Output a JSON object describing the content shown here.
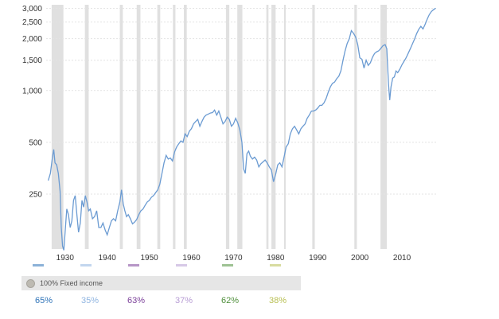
{
  "chart_data": {
    "type": "line",
    "title": "",
    "xlabel": "",
    "ylabel": "",
    "x_ticks": [
      "1930",
      "1940",
      "1950",
      "1960",
      "1970",
      "1980",
      "1990",
      "2000",
      "2010"
    ],
    "y_ticks": [
      "250",
      "500",
      "1,000",
      "1,500",
      "2,000",
      "2,500",
      "3,000"
    ],
    "y_scale": "log",
    "xlim": [
      1925.5,
      2018.5
    ],
    "ylim": [
      120,
      3150
    ],
    "grid": "horizontal dashed",
    "line_color": "#6b9bd2",
    "recession_color": "#e0e0e0",
    "recessions": [
      [
        1926.8,
        1929.6
      ],
      [
        1934.7,
        1935.6
      ],
      [
        1943.0,
        1943.7
      ],
      [
        1947.0,
        1947.9
      ],
      [
        1951.9,
        1952.6
      ],
      [
        1955.6,
        1956.2
      ],
      [
        1958.2,
        1958.9
      ],
      [
        1968.2,
        1969.0
      ],
      [
        1970.9,
        1972.1
      ],
      [
        1977.8,
        1978.3
      ],
      [
        1979.0,
        1980.0
      ],
      [
        1982.0,
        1982.4
      ],
      [
        1988.7,
        1989.3
      ],
      [
        1998.7,
        1999.3
      ],
      [
        2004.9,
        2006.4
      ]
    ],
    "series": [
      {
        "points": [
          [
            1926.0,
            300
          ],
          [
            1926.5,
            330
          ],
          [
            1927.0,
            410
          ],
          [
            1927.3,
            455
          ],
          [
            1927.6,
            380
          ],
          [
            1928.0,
            370
          ],
          [
            1928.4,
            330
          ],
          [
            1928.8,
            260
          ],
          [
            1929.1,
            160
          ],
          [
            1929.4,
            125
          ],
          [
            1929.7,
            118
          ],
          [
            1930.0,
            150
          ],
          [
            1930.4,
            205
          ],
          [
            1930.8,
            190
          ],
          [
            1931.2,
            160
          ],
          [
            1931.6,
            175
          ],
          [
            1932.0,
            230
          ],
          [
            1932.4,
            245
          ],
          [
            1932.8,
            190
          ],
          [
            1933.2,
            150
          ],
          [
            1933.6,
            170
          ],
          [
            1934.0,
            230
          ],
          [
            1934.4,
            210
          ],
          [
            1934.8,
            245
          ],
          [
            1935.2,
            225
          ],
          [
            1935.6,
            200
          ],
          [
            1936.0,
            205
          ],
          [
            1936.5,
            180
          ],
          [
            1937.0,
            185
          ],
          [
            1937.5,
            200
          ],
          [
            1938.0,
            160
          ],
          [
            1938.5,
            160
          ],
          [
            1939.0,
            170
          ],
          [
            1939.5,
            155
          ],
          [
            1940.0,
            145
          ],
          [
            1940.5,
            160
          ],
          [
            1941.0,
            175
          ],
          [
            1941.5,
            180
          ],
          [
            1942.0,
            175
          ],
          [
            1942.5,
            200
          ],
          [
            1943.0,
            225
          ],
          [
            1943.4,
            265
          ],
          [
            1943.8,
            220
          ],
          [
            1944.2,
            200
          ],
          [
            1944.6,
            185
          ],
          [
            1945.0,
            190
          ],
          [
            1945.5,
            180
          ],
          [
            1946.0,
            168
          ],
          [
            1946.5,
            172
          ],
          [
            1947.0,
            178
          ],
          [
            1947.5,
            190
          ],
          [
            1948.0,
            200
          ],
          [
            1948.5,
            205
          ],
          [
            1949.0,
            215
          ],
          [
            1949.5,
            225
          ],
          [
            1950.0,
            230
          ],
          [
            1950.5,
            240
          ],
          [
            1951.0,
            245
          ],
          [
            1951.5,
            255
          ],
          [
            1952.0,
            265
          ],
          [
            1952.5,
            285
          ],
          [
            1953.0,
            330
          ],
          [
            1953.5,
            380
          ],
          [
            1954.0,
            420
          ],
          [
            1954.5,
            400
          ],
          [
            1955.0,
            405
          ],
          [
            1955.5,
            390
          ],
          [
            1956.0,
            440
          ],
          [
            1956.5,
            470
          ],
          [
            1957.0,
            490
          ],
          [
            1957.5,
            510
          ],
          [
            1958.0,
            500
          ],
          [
            1958.5,
            560
          ],
          [
            1959.0,
            540
          ],
          [
            1959.5,
            580
          ],
          [
            1960.0,
            600
          ],
          [
            1960.5,
            640
          ],
          [
            1961.0,
            660
          ],
          [
            1961.5,
            680
          ],
          [
            1962.0,
            620
          ],
          [
            1962.5,
            660
          ],
          [
            1963.0,
            700
          ],
          [
            1963.5,
            720
          ],
          [
            1964.0,
            730
          ],
          [
            1964.5,
            740
          ],
          [
            1965.0,
            745
          ],
          [
            1965.5,
            770
          ],
          [
            1966.0,
            720
          ],
          [
            1966.5,
            760
          ],
          [
            1967.0,
            700
          ],
          [
            1967.5,
            640
          ],
          [
            1968.0,
            660
          ],
          [
            1968.5,
            700
          ],
          [
            1969.0,
            680
          ],
          [
            1969.5,
            620
          ],
          [
            1970.0,
            640
          ],
          [
            1970.5,
            690
          ],
          [
            1971.0,
            650
          ],
          [
            1971.5,
            590
          ],
          [
            1972.0,
            500
          ],
          [
            1972.4,
            350
          ],
          [
            1972.8,
            330
          ],
          [
            1973.2,
            430
          ],
          [
            1973.6,
            445
          ],
          [
            1974.0,
            415
          ],
          [
            1974.5,
            400
          ],
          [
            1975.0,
            410
          ],
          [
            1975.5,
            395
          ],
          [
            1976.0,
            360
          ],
          [
            1976.5,
            375
          ],
          [
            1977.0,
            385
          ],
          [
            1977.5,
            395
          ],
          [
            1978.0,
            380
          ],
          [
            1978.5,
            360
          ],
          [
            1979.0,
            345
          ],
          [
            1979.5,
            295
          ],
          [
            1980.0,
            325
          ],
          [
            1980.5,
            370
          ],
          [
            1981.0,
            380
          ],
          [
            1981.5,
            360
          ],
          [
            1982.0,
            410
          ],
          [
            1982.5,
            470
          ],
          [
            1983.0,
            490
          ],
          [
            1983.5,
            560
          ],
          [
            1984.0,
            600
          ],
          [
            1984.5,
            620
          ],
          [
            1985.0,
            590
          ],
          [
            1985.5,
            560
          ],
          [
            1986.0,
            600
          ],
          [
            1986.5,
            620
          ],
          [
            1987.0,
            640
          ],
          [
            1987.5,
            690
          ],
          [
            1988.0,
            720
          ],
          [
            1988.5,
            760
          ],
          [
            1989.0,
            760
          ],
          [
            1989.5,
            770
          ],
          [
            1990.0,
            790
          ],
          [
            1990.5,
            820
          ],
          [
            1991.0,
            820
          ],
          [
            1991.5,
            850
          ],
          [
            1992.0,
            900
          ],
          [
            1992.5,
            980
          ],
          [
            1993.0,
            1050
          ],
          [
            1993.5,
            1100
          ],
          [
            1994.0,
            1120
          ],
          [
            1994.5,
            1170
          ],
          [
            1995.0,
            1210
          ],
          [
            1995.5,
            1300
          ],
          [
            1996.0,
            1500
          ],
          [
            1996.5,
            1700
          ],
          [
            1997.0,
            1880
          ],
          [
            1997.5,
            2000
          ],
          [
            1998.0,
            2230
          ],
          [
            1998.5,
            2150
          ],
          [
            1999.0,
            2050
          ],
          [
            1999.5,
            1850
          ],
          [
            2000.0,
            1550
          ],
          [
            2000.5,
            1520
          ],
          [
            2001.0,
            1350
          ],
          [
            2001.5,
            1500
          ],
          [
            2002.0,
            1400
          ],
          [
            2002.5,
            1450
          ],
          [
            2003.0,
            1560
          ],
          [
            2003.5,
            1640
          ],
          [
            2004.0,
            1680
          ],
          [
            2004.5,
            1700
          ],
          [
            2005.0,
            1760
          ],
          [
            2005.5,
            1820
          ],
          [
            2006.0,
            1850
          ],
          [
            2006.4,
            1750
          ],
          [
            2006.8,
            1100
          ],
          [
            2007.1,
            880
          ],
          [
            2007.4,
            1050
          ],
          [
            2007.8,
            1180
          ],
          [
            2008.2,
            1200
          ],
          [
            2008.6,
            1300
          ],
          [
            2009.0,
            1270
          ],
          [
            2009.5,
            1330
          ],
          [
            2010.0,
            1410
          ],
          [
            2010.5,
            1480
          ],
          [
            2011.0,
            1550
          ],
          [
            2011.5,
            1650
          ],
          [
            2012.0,
            1750
          ],
          [
            2012.5,
            1870
          ],
          [
            2013.0,
            1990
          ],
          [
            2013.5,
            2140
          ],
          [
            2014.0,
            2270
          ],
          [
            2014.5,
            2360
          ],
          [
            2015.0,
            2280
          ],
          [
            2015.5,
            2420
          ],
          [
            2016.0,
            2600
          ],
          [
            2016.5,
            2760
          ],
          [
            2017.0,
            2880
          ],
          [
            2017.5,
            2950
          ],
          [
            2018.0,
            3010
          ]
        ]
      }
    ]
  },
  "legend": {
    "dot_label": "100% Fixed income",
    "dot_color": "#bdbab2"
  },
  "allocations": [
    {
      "value": "65%",
      "color": "#2e73b8"
    },
    {
      "value": "35%",
      "color": "#8fb4e0"
    },
    {
      "value": "63%",
      "color": "#7b3f99"
    },
    {
      "value": "37%",
      "color": "#b79cd4"
    },
    {
      "value": "62%",
      "color": "#4f8f3b"
    },
    {
      "value": "38%",
      "color": "#b8bf52"
    }
  ]
}
